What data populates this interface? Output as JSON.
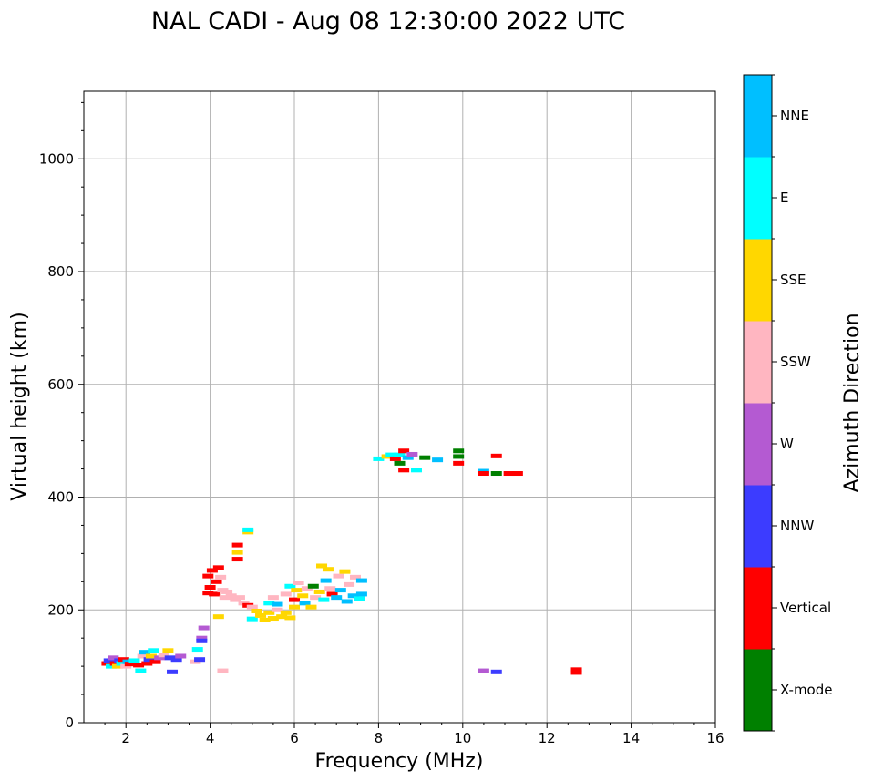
{
  "chart_data": {
    "type": "scatter",
    "title": "NAL CADI - Aug 08 12:30:00 2022 UTC",
    "xlabel": "Frequency (MHz)",
    "ylabel": "Virtual height (km)",
    "xlim": [
      1,
      16
    ],
    "ylim": [
      0,
      1120
    ],
    "xticks": [
      2,
      4,
      6,
      8,
      10,
      12,
      14,
      16
    ],
    "yticks": [
      0,
      200,
      400,
      600,
      800,
      1000
    ],
    "grid": true,
    "colorbar": {
      "label": "Azimuth Direction",
      "categories": [
        {
          "name": "X-mode",
          "color": "#008000"
        },
        {
          "name": "Vertical",
          "color": "#ff0000"
        },
        {
          "name": "NNW",
          "color": "#3c3cff"
        },
        {
          "name": "W",
          "color": "#b45ad2"
        },
        {
          "name": "SSW",
          "color": "#ffb6c1"
        },
        {
          "name": "SSE",
          "color": "#ffd700"
        },
        {
          "name": "E",
          "color": "#00ffff"
        },
        {
          "name": "NNE",
          "color": "#00bfff"
        }
      ]
    },
    "points": [
      {
        "x": 1.55,
        "y": 105,
        "c": "Vertical"
      },
      {
        "x": 1.6,
        "y": 110,
        "c": "NNW"
      },
      {
        "x": 1.65,
        "y": 100,
        "c": "E"
      },
      {
        "x": 1.7,
        "y": 115,
        "c": "W"
      },
      {
        "x": 1.75,
        "y": 105,
        "c": "Vertical"
      },
      {
        "x": 1.8,
        "y": 100,
        "c": "SSE"
      },
      {
        "x": 1.85,
        "y": 110,
        "c": "NNW"
      },
      {
        "x": 1.9,
        "y": 105,
        "c": "E"
      },
      {
        "x": 1.95,
        "y": 112,
        "c": "Vertical"
      },
      {
        "x": 2.0,
        "y": 100,
        "c": "SSW"
      },
      {
        "x": 2.05,
        "y": 108,
        "c": "NNE"
      },
      {
        "x": 2.1,
        "y": 104,
        "c": "Vertical"
      },
      {
        "x": 2.2,
        "y": 110,
        "c": "E"
      },
      {
        "x": 2.3,
        "y": 102,
        "c": "Vertical"
      },
      {
        "x": 2.35,
        "y": 92,
        "c": "E"
      },
      {
        "x": 2.4,
        "y": 118,
        "c": "SSW"
      },
      {
        "x": 2.45,
        "y": 125,
        "c": "NNE"
      },
      {
        "x": 2.5,
        "y": 105,
        "c": "Vertical"
      },
      {
        "x": 2.55,
        "y": 112,
        "c": "NNW"
      },
      {
        "x": 2.6,
        "y": 118,
        "c": "SSE"
      },
      {
        "x": 2.65,
        "y": 128,
        "c": "E"
      },
      {
        "x": 2.7,
        "y": 108,
        "c": "Vertical"
      },
      {
        "x": 2.8,
        "y": 115,
        "c": "W"
      },
      {
        "x": 2.9,
        "y": 120,
        "c": "SSW"
      },
      {
        "x": 3.0,
        "y": 128,
        "c": "SSE"
      },
      {
        "x": 3.05,
        "y": 115,
        "c": "NNW"
      },
      {
        "x": 3.1,
        "y": 90,
        "c": "NNW"
      },
      {
        "x": 3.2,
        "y": 112,
        "c": "NNW"
      },
      {
        "x": 3.3,
        "y": 118,
        "c": "W"
      },
      {
        "x": 3.65,
        "y": 108,
        "c": "SSW"
      },
      {
        "x": 3.7,
        "y": 130,
        "c": "E"
      },
      {
        "x": 3.75,
        "y": 112,
        "c": "NNW"
      },
      {
        "x": 3.8,
        "y": 150,
        "c": "W"
      },
      {
        "x": 3.85,
        "y": 168,
        "c": "W"
      },
      {
        "x": 3.8,
        "y": 145,
        "c": "NNW"
      },
      {
        "x": 4.3,
        "y": 92,
        "c": "SSW"
      },
      {
        "x": 3.95,
        "y": 230,
        "c": "Vertical"
      },
      {
        "x": 3.95,
        "y": 260,
        "c": "Vertical"
      },
      {
        "x": 4.0,
        "y": 240,
        "c": "Vertical"
      },
      {
        "x": 4.05,
        "y": 270,
        "c": "Vertical"
      },
      {
        "x": 4.1,
        "y": 228,
        "c": "Vertical"
      },
      {
        "x": 4.15,
        "y": 250,
        "c": "Vertical"
      },
      {
        "x": 4.2,
        "y": 275,
        "c": "Vertical"
      },
      {
        "x": 4.25,
        "y": 258,
        "c": "SSW"
      },
      {
        "x": 4.3,
        "y": 235,
        "c": "SSW"
      },
      {
        "x": 4.35,
        "y": 222,
        "c": "SSW"
      },
      {
        "x": 4.4,
        "y": 232,
        "c": "SSW"
      },
      {
        "x": 4.5,
        "y": 225,
        "c": "SSW"
      },
      {
        "x": 4.6,
        "y": 218,
        "c": "SSW"
      },
      {
        "x": 4.7,
        "y": 222,
        "c": "SSW"
      },
      {
        "x": 4.2,
        "y": 188,
        "c": "SSE"
      },
      {
        "x": 4.65,
        "y": 290,
        "c": "Vertical"
      },
      {
        "x": 4.65,
        "y": 302,
        "c": "SSE"
      },
      {
        "x": 4.65,
        "y": 315,
        "c": "Vertical"
      },
      {
        "x": 4.9,
        "y": 338,
        "c": "SSE"
      },
      {
        "x": 4.9,
        "y": 342,
        "c": "E"
      },
      {
        "x": 4.8,
        "y": 212,
        "c": "SSW"
      },
      {
        "x": 4.9,
        "y": 208,
        "c": "Vertical"
      },
      {
        "x": 5.0,
        "y": 205,
        "c": "SSW"
      },
      {
        "x": 5.0,
        "y": 184,
        "c": "E"
      },
      {
        "x": 5.1,
        "y": 198,
        "c": "SSE"
      },
      {
        "x": 5.2,
        "y": 190,
        "c": "SSE"
      },
      {
        "x": 5.3,
        "y": 182,
        "c": "SSE"
      },
      {
        "x": 5.4,
        "y": 195,
        "c": "SSE"
      },
      {
        "x": 5.5,
        "y": 185,
        "c": "SSE"
      },
      {
        "x": 5.6,
        "y": 200,
        "c": "SSW"
      },
      {
        "x": 5.7,
        "y": 188,
        "c": "SSE"
      },
      {
        "x": 5.8,
        "y": 195,
        "c": "SSE"
      },
      {
        "x": 5.9,
        "y": 186,
        "c": "SSE"
      },
      {
        "x": 6.0,
        "y": 205,
        "c": "SSE"
      },
      {
        "x": 5.5,
        "y": 222,
        "c": "SSW"
      },
      {
        "x": 5.4,
        "y": 212,
        "c": "E"
      },
      {
        "x": 5.6,
        "y": 210,
        "c": "NNE"
      },
      {
        "x": 5.8,
        "y": 228,
        "c": "SSW"
      },
      {
        "x": 5.9,
        "y": 242,
        "c": "E"
      },
      {
        "x": 6.0,
        "y": 218,
        "c": "Vertical"
      },
      {
        "x": 6.05,
        "y": 235,
        "c": "SSE"
      },
      {
        "x": 6.1,
        "y": 248,
        "c": "SSW"
      },
      {
        "x": 6.2,
        "y": 225,
        "c": "SSE"
      },
      {
        "x": 6.25,
        "y": 212,
        "c": "NNE"
      },
      {
        "x": 6.3,
        "y": 238,
        "c": "SSW"
      },
      {
        "x": 6.4,
        "y": 205,
        "c": "SSE"
      },
      {
        "x": 6.45,
        "y": 242,
        "c": "X-mode"
      },
      {
        "x": 6.5,
        "y": 222,
        "c": "SSW"
      },
      {
        "x": 6.6,
        "y": 232,
        "c": "SSE"
      },
      {
        "x": 6.65,
        "y": 278,
        "c": "SSE"
      },
      {
        "x": 6.7,
        "y": 218,
        "c": "E"
      },
      {
        "x": 6.75,
        "y": 252,
        "c": "NNE"
      },
      {
        "x": 6.8,
        "y": 272,
        "c": "SSE"
      },
      {
        "x": 6.85,
        "y": 238,
        "c": "SSW"
      },
      {
        "x": 6.9,
        "y": 228,
        "c": "Vertical"
      },
      {
        "x": 7.0,
        "y": 222,
        "c": "NNE"
      },
      {
        "x": 7.05,
        "y": 260,
        "c": "SSW"
      },
      {
        "x": 7.1,
        "y": 235,
        "c": "NNE"
      },
      {
        "x": 7.2,
        "y": 268,
        "c": "SSE"
      },
      {
        "x": 7.25,
        "y": 215,
        "c": "NNE"
      },
      {
        "x": 7.3,
        "y": 245,
        "c": "SSW"
      },
      {
        "x": 7.4,
        "y": 225,
        "c": "NNE"
      },
      {
        "x": 7.45,
        "y": 258,
        "c": "SSW"
      },
      {
        "x": 7.55,
        "y": 220,
        "c": "E"
      },
      {
        "x": 7.6,
        "y": 252,
        "c": "NNE"
      },
      {
        "x": 7.6,
        "y": 228,
        "c": "NNE"
      },
      {
        "x": 8.0,
        "y": 468,
        "c": "E"
      },
      {
        "x": 8.2,
        "y": 472,
        "c": "SSE"
      },
      {
        "x": 8.3,
        "y": 475,
        "c": "E"
      },
      {
        "x": 8.4,
        "y": 468,
        "c": "Vertical"
      },
      {
        "x": 8.5,
        "y": 460,
        "c": "X-mode"
      },
      {
        "x": 8.5,
        "y": 475,
        "c": "E"
      },
      {
        "x": 8.6,
        "y": 448,
        "c": "Vertical"
      },
      {
        "x": 8.6,
        "y": 482,
        "c": "Vertical"
      },
      {
        "x": 8.7,
        "y": 470,
        "c": "NNE"
      },
      {
        "x": 8.8,
        "y": 476,
        "c": "W"
      },
      {
        "x": 8.9,
        "y": 448,
        "c": "E"
      },
      {
        "x": 9.1,
        "y": 470,
        "c": "X-mode"
      },
      {
        "x": 9.4,
        "y": 466,
        "c": "NNE"
      },
      {
        "x": 9.9,
        "y": 482,
        "c": "X-mode"
      },
      {
        "x": 9.9,
        "y": 472,
        "c": "X-mode"
      },
      {
        "x": 9.9,
        "y": 460,
        "c": "Vertical"
      },
      {
        "x": 10.5,
        "y": 446,
        "c": "NNE"
      },
      {
        "x": 10.5,
        "y": 442,
        "c": "Vertical"
      },
      {
        "x": 10.8,
        "y": 442,
        "c": "X-mode"
      },
      {
        "x": 10.8,
        "y": 473,
        "c": "Vertical"
      },
      {
        "x": 11.1,
        "y": 442,
        "c": "Vertical"
      },
      {
        "x": 11.3,
        "y": 442,
        "c": "Vertical"
      },
      {
        "x": 10.5,
        "y": 92,
        "c": "W"
      },
      {
        "x": 10.8,
        "y": 90,
        "c": "NNW"
      },
      {
        "x": 12.7,
        "y": 94,
        "c": "Vertical"
      },
      {
        "x": 12.7,
        "y": 89,
        "c": "Vertical"
      }
    ]
  }
}
